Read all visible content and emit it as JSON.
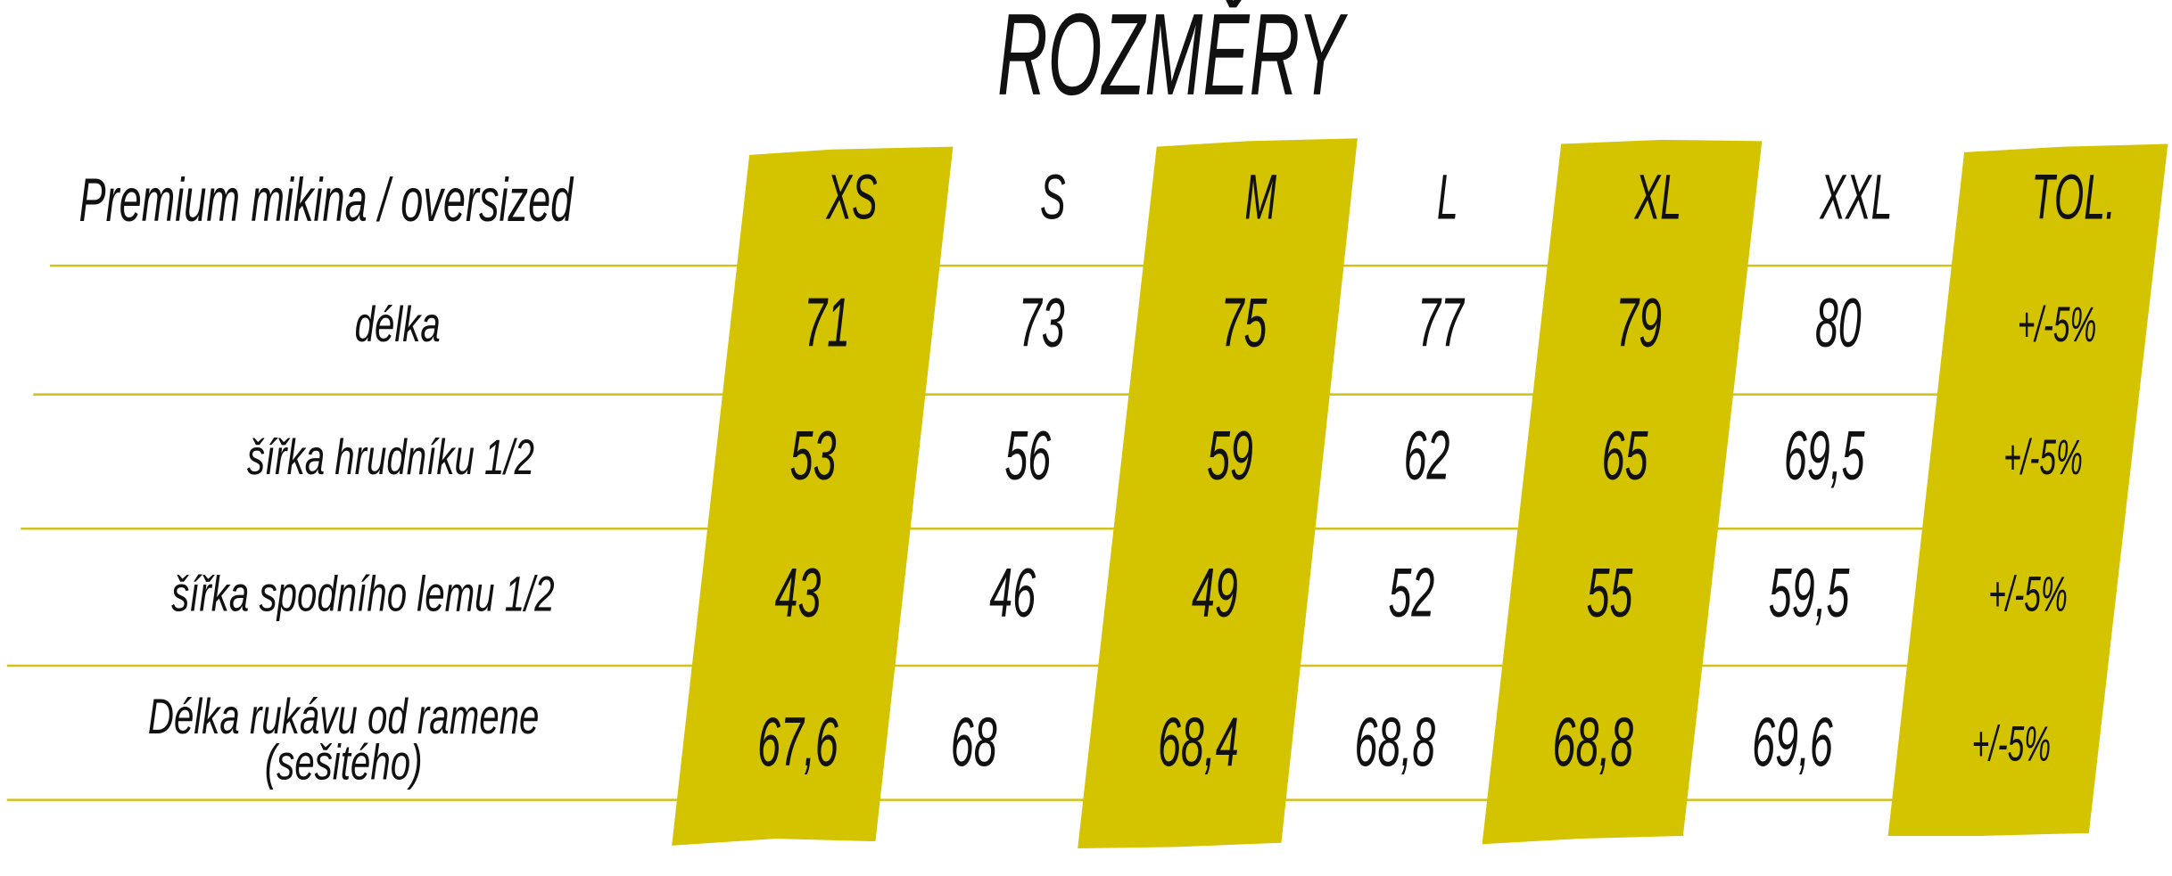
{
  "title": "ROZMĚRY",
  "table": {
    "header": [
      "Premium mikina / oversized",
      "XS",
      "S",
      "M",
      "L",
      "XL",
      "XXL",
      "TOL."
    ],
    "rows": [
      {
        "label": [
          "délka"
        ],
        "cells": [
          "71",
          "73",
          "75",
          "77",
          "79",
          "80",
          "+/-5%"
        ]
      },
      {
        "label": [
          "šířka hrudníku 1/2"
        ],
        "cells": [
          "53",
          "56",
          "59",
          "62",
          "65",
          "69,5",
          "+/-5%"
        ]
      },
      {
        "label": [
          "šířka spodního lemu 1/2"
        ],
        "cells": [
          "43",
          "46",
          "49",
          "52",
          "55",
          "59,5",
          "+/-5%"
        ]
      },
      {
        "label": [
          "Délka rukávu od ramene",
          "(sešitého)"
        ],
        "cells": [
          "67,6",
          "68",
          "68,4",
          "68,8",
          "68,8",
          "69,6",
          "+/-5%"
        ]
      }
    ]
  }
}
